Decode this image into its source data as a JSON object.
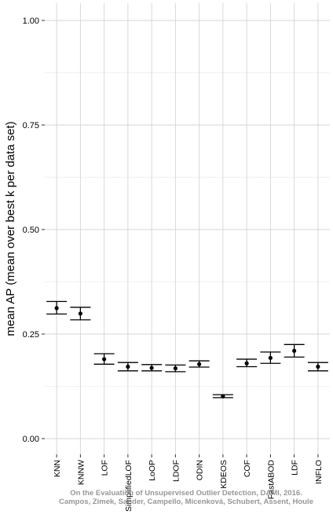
{
  "chart_data": {
    "type": "scatter",
    "ylabel": "mean AP (mean over best k per data set)",
    "xlabel": "",
    "ylim": [
      -0.04,
      1.05
    ],
    "yticks": [
      "0.00",
      "0.25",
      "0.50",
      "0.75",
      "1.00"
    ],
    "grid": true,
    "categories": [
      "KNN",
      "KNNW",
      "LOF",
      "SimplifiedLOF",
      "LoOP",
      "LDOF",
      "ODIN",
      "KDEOS",
      "COF",
      "FastABOD",
      "LDF",
      "INFLO"
    ],
    "values": [
      0.312,
      0.299,
      0.19,
      0.172,
      0.169,
      0.168,
      0.178,
      0.101,
      0.18,
      0.193,
      0.21,
      0.172
    ],
    "error_low": [
      0.298,
      0.284,
      0.178,
      0.162,
      0.162,
      0.16,
      0.171,
      0.098,
      0.172,
      0.18,
      0.195,
      0.162
    ],
    "error_high": [
      0.328,
      0.314,
      0.203,
      0.182,
      0.177,
      0.176,
      0.186,
      0.105,
      0.19,
      0.207,
      0.225,
      0.182
    ]
  },
  "caption": {
    "line1": "On the Evaluation of Unsupervised Outlier Detection, DAMI, 2016.",
    "line2": "Campos, Zimek, Sander, Campello, Micenková, Schubert, Assent, Houle"
  },
  "colors": {
    "grid": "#d4d4d4",
    "marks": "#000000",
    "background": "#ffffff"
  }
}
